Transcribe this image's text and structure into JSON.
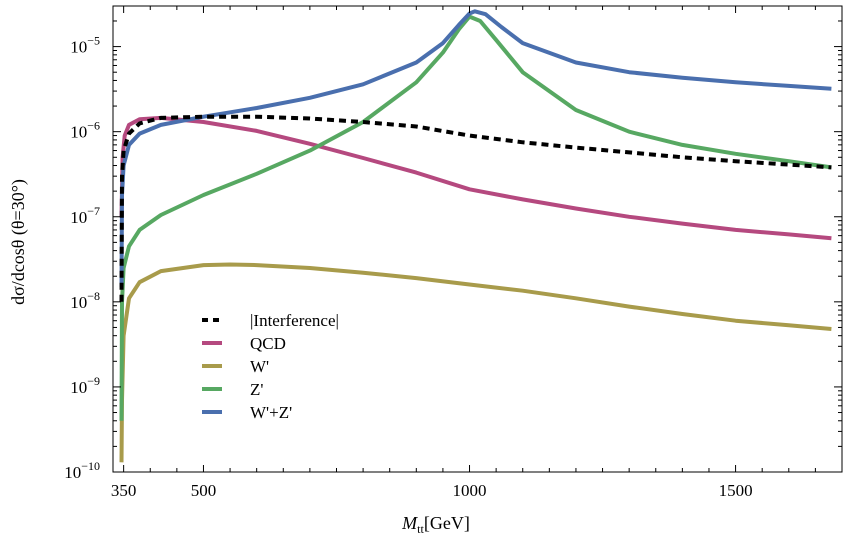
{
  "chart_data": {
    "type": "line",
    "title": "",
    "xlabel": "M_tt[GeV]",
    "xlabel_parts": {
      "main": "M",
      "sub": "tt",
      "unit": "[GeV]"
    },
    "ylabel": "dσ/dcosθ (θ=30°)",
    "xlim": [
      330,
      1700
    ],
    "ylim": [
      1e-10,
      3e-05
    ],
    "yscale": "log",
    "grid": false,
    "legend_position": "lower-left",
    "x_ticks": [
      {
        "value": 350,
        "label": "350"
      },
      {
        "value": 500,
        "label": "500"
      },
      {
        "value": 1000,
        "label": "1000"
      },
      {
        "value": 1500,
        "label": "1500"
      }
    ],
    "y_ticks": [
      {
        "exp": -10,
        "label_base": "10",
        "label_exp": "−10"
      },
      {
        "exp": -9,
        "label_base": "10",
        "label_exp": "−9"
      },
      {
        "exp": -8,
        "label_base": "10",
        "label_exp": "−8"
      },
      {
        "exp": -7,
        "label_base": "10",
        "label_exp": "−7"
      },
      {
        "exp": -6,
        "label_base": "10",
        "label_exp": "−6"
      },
      {
        "exp": -5,
        "label_base": "10",
        "label_exp": "−5"
      }
    ],
    "series": [
      {
        "name": "|Interference|",
        "color": "#000000",
        "dashed": true,
        "points": [
          [
            346,
            1e-08
          ],
          [
            347,
            3e-07
          ],
          [
            350,
            6e-07
          ],
          [
            360,
            9.5e-07
          ],
          [
            380,
            1.25e-06
          ],
          [
            420,
            1.45e-06
          ],
          [
            500,
            1.5e-06
          ],
          [
            600,
            1.5e-06
          ],
          [
            700,
            1.43e-06
          ],
          [
            800,
            1.3e-06
          ],
          [
            900,
            1.15e-06
          ],
          [
            1000,
            9e-07
          ],
          [
            1100,
            7.5e-07
          ],
          [
            1200,
            6.5e-07
          ],
          [
            1300,
            5.7e-07
          ],
          [
            1400,
            5e-07
          ],
          [
            1500,
            4.5e-07
          ],
          [
            1600,
            4.1e-07
          ],
          [
            1680,
            3.8e-07
          ]
        ]
      },
      {
        "name": "QCD",
        "color": "#b5497f",
        "dashed": false,
        "points": [
          [
            346,
            1e-07
          ],
          [
            348,
            5e-07
          ],
          [
            352,
            9e-07
          ],
          [
            360,
            1.2e-06
          ],
          [
            380,
            1.4e-06
          ],
          [
            420,
            1.45e-06
          ],
          [
            500,
            1.3e-06
          ],
          [
            600,
            1.02e-06
          ],
          [
            700,
            7.2e-07
          ],
          [
            800,
            4.9e-07
          ],
          [
            900,
            3.3e-07
          ],
          [
            1000,
            2.1e-07
          ],
          [
            1100,
            1.6e-07
          ],
          [
            1200,
            1.25e-07
          ],
          [
            1300,
            1e-07
          ],
          [
            1400,
            8.3e-08
          ],
          [
            1500,
            7e-08
          ],
          [
            1600,
            6.2e-08
          ],
          [
            1680,
            5.6e-08
          ]
        ]
      },
      {
        "name": "W'",
        "color": "#a89b4b",
        "dashed": false,
        "points": [
          [
            346,
            1.3e-10
          ],
          [
            347,
            7e-10
          ],
          [
            350,
            4e-09
          ],
          [
            360,
            1.1e-08
          ],
          [
            380,
            1.7e-08
          ],
          [
            420,
            2.3e-08
          ],
          [
            500,
            2.7e-08
          ],
          [
            550,
            2.75e-08
          ],
          [
            600,
            2.7e-08
          ],
          [
            700,
            2.5e-08
          ],
          [
            800,
            2.2e-08
          ],
          [
            900,
            1.9e-08
          ],
          [
            1000,
            1.6e-08
          ],
          [
            1100,
            1.35e-08
          ],
          [
            1200,
            1.1e-08
          ],
          [
            1300,
            8.8e-09
          ],
          [
            1400,
            7.2e-09
          ],
          [
            1500,
            6e-09
          ],
          [
            1600,
            5.3e-09
          ],
          [
            1680,
            4.8e-09
          ]
        ]
      },
      {
        "name": "Z'",
        "color": "#57a862",
        "dashed": false,
        "points": [
          [
            346,
            4e-10
          ],
          [
            347,
            1e-08
          ],
          [
            350,
            2.5e-08
          ],
          [
            360,
            4.5e-08
          ],
          [
            380,
            7e-08
          ],
          [
            420,
            1.05e-07
          ],
          [
            500,
            1.8e-07
          ],
          [
            600,
            3.2e-07
          ],
          [
            700,
            6e-07
          ],
          [
            800,
            1.3e-06
          ],
          [
            900,
            3.8e-06
          ],
          [
            950,
            8.5e-06
          ],
          [
            980,
            1.6e-05
          ],
          [
            1000,
            2.25e-05
          ],
          [
            1020,
            2e-05
          ],
          [
            1050,
            1.2e-05
          ],
          [
            1100,
            5e-06
          ],
          [
            1200,
            1.8e-06
          ],
          [
            1300,
            1e-06
          ],
          [
            1400,
            7e-07
          ],
          [
            1500,
            5.5e-07
          ],
          [
            1600,
            4.5e-07
          ],
          [
            1680,
            3.8e-07
          ]
        ]
      },
      {
        "name": "W'+Z'",
        "color": "#4a6fae",
        "dashed": false,
        "points": [
          [
            346,
            1.5e-08
          ],
          [
            347,
            1.8e-07
          ],
          [
            350,
            4e-07
          ],
          [
            360,
            7e-07
          ],
          [
            380,
            9.5e-07
          ],
          [
            420,
            1.2e-06
          ],
          [
            500,
            1.5e-06
          ],
          [
            600,
            1.9e-06
          ],
          [
            700,
            2.5e-06
          ],
          [
            800,
            3.6e-06
          ],
          [
            900,
            6.5e-06
          ],
          [
            950,
            1.1e-05
          ],
          [
            980,
            1.8e-05
          ],
          [
            1000,
            2.45e-05
          ],
          [
            1010,
            2.6e-05
          ],
          [
            1030,
            2.4e-05
          ],
          [
            1060,
            1.7e-05
          ],
          [
            1100,
            1.1e-05
          ],
          [
            1200,
            6.5e-06
          ],
          [
            1300,
            5e-06
          ],
          [
            1400,
            4.3e-06
          ],
          [
            1500,
            3.8e-06
          ],
          [
            1600,
            3.45e-06
          ],
          [
            1680,
            3.2e-06
          ]
        ]
      }
    ]
  }
}
